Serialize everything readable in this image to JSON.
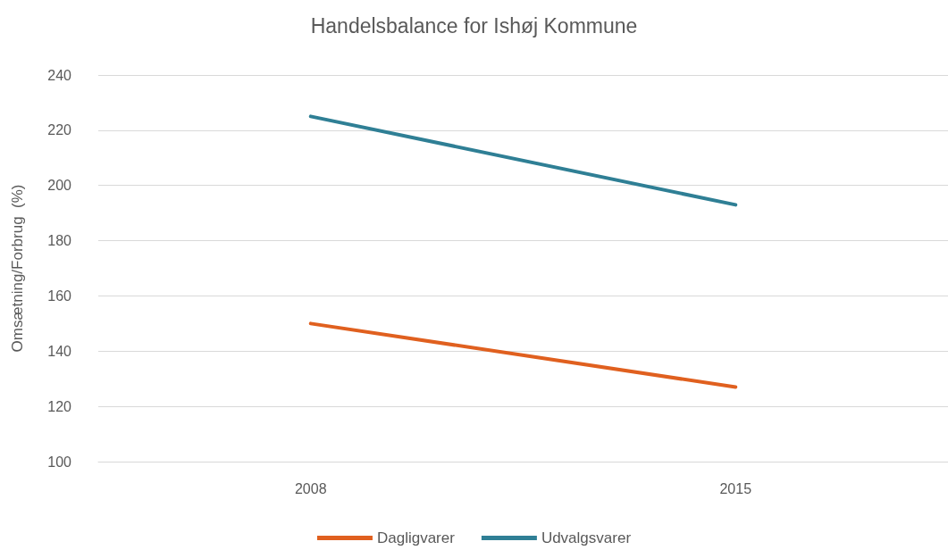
{
  "chart_data": {
    "type": "line",
    "title": "Handelsbalance for Ishøj Kommune",
    "ylabel": "Omsætning/Forbrug  (%)",
    "categories": [
      "2008",
      "2015"
    ],
    "series": [
      {
        "name": "Dagligvarer",
        "color": "#e0601f",
        "values": [
          150,
          127
        ]
      },
      {
        "name": "Udvalgsvarer",
        "color": "#2f7f95",
        "values": [
          225,
          193
        ]
      }
    ],
    "ylim": [
      100,
      240
    ],
    "yticks": [
      100,
      120,
      140,
      160,
      180,
      200,
      220,
      240
    ],
    "grid": "y",
    "legend": "bottom",
    "marker": "none",
    "line_style": "solid"
  }
}
